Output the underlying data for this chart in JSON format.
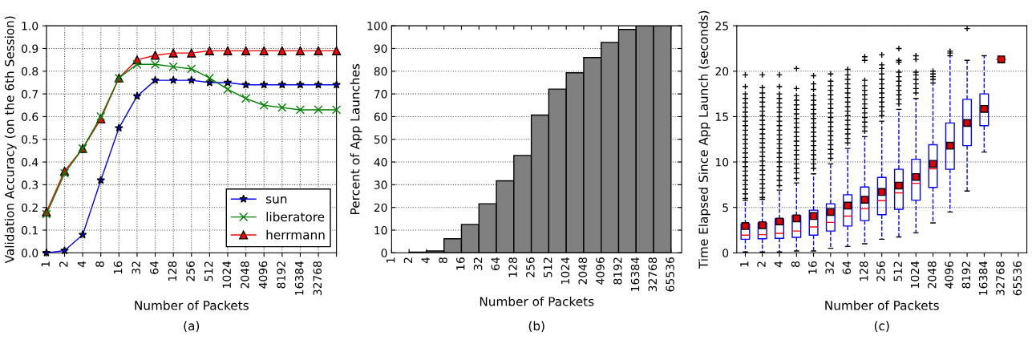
{
  "chart_data": [
    {
      "type": "line",
      "xlabel": "Number of Packets",
      "ylabel": "Validation Accuracy (on the 6th Session)",
      "categories": [
        "1",
        "2",
        "4",
        "8",
        "16",
        "32",
        "64",
        "128",
        "256",
        "512",
        "1024",
        "2048",
        "4096",
        "8192",
        "16384",
        "32768",
        null
      ],
      "series": [
        {
          "name": "sun",
          "color": "#0000ff",
          "marker": "star",
          "values": [
            0.0,
            0.01,
            0.08,
            0.32,
            0.55,
            0.69,
            0.76,
            0.76,
            0.76,
            0.75,
            0.75,
            0.74,
            0.74,
            0.74,
            0.74,
            0.74,
            0.74
          ]
        },
        {
          "name": "liberatore",
          "color": "#008000",
          "marker": "cross",
          "values": [
            0.17,
            0.35,
            0.46,
            0.6,
            0.77,
            0.83,
            0.83,
            0.82,
            0.81,
            0.77,
            0.72,
            0.68,
            0.65,
            0.64,
            0.63,
            0.63,
            0.63
          ]
        },
        {
          "name": "herrmann",
          "color": "#ff0000",
          "marker": "triangle",
          "values": [
            0.18,
            0.36,
            0.46,
            0.59,
            0.77,
            0.85,
            0.87,
            0.88,
            0.88,
            0.89,
            0.89,
            0.89,
            0.89,
            0.89,
            0.89,
            0.89,
            0.89
          ]
        }
      ],
      "ylim": [
        0.0,
        1.0
      ],
      "yticks": [
        {
          "value": 0,
          "label": "0.0"
        },
        0.1,
        0.2,
        0.3,
        0.4,
        0.5,
        0.6,
        0.7,
        0.8,
        0.9,
        {
          "value": 1,
          "label": "1.0"
        }
      ],
      "grid": true,
      "legend": "bottom right",
      "annotations": [
        "(a)"
      ]
    },
    {
      "type": "histogram",
      "xlabel": "Number of Packets",
      "ylabel": "Percent of App Launches",
      "color": "#808080",
      "log": "x",
      "bins": [
        1,
        2,
        4,
        8,
        16,
        32,
        64,
        128,
        256,
        512,
        1024,
        2048,
        4096,
        8192,
        16384,
        32768,
        65536
      ],
      "values": [
        0,
        0.3,
        0.8,
        6.2,
        12.5,
        21.6,
        31.7,
        42.9,
        60.7,
        72.1,
        79.3,
        86.0,
        92.7,
        98.4,
        100,
        100
      ],
      "xlim": [
        1,
        100000
      ],
      "xticks": [
        1,
        2,
        4,
        8,
        16,
        32,
        64,
        128,
        256,
        512,
        1024,
        2048,
        4096,
        8192,
        16384,
        32768,
        65536
      ],
      "ylim": [
        0,
        100
      ],
      "yticks": [
        0,
        10,
        20,
        30,
        40,
        50,
        60,
        70,
        80,
        90,
        100
      ],
      "grid": "y",
      "annotations": [
        "(b)"
      ]
    },
    {
      "type": "box",
      "xlabel": "Number of Packets",
      "ylabel": "Time Elapsed Since App Launch (seconds)",
      "color": "#0000ff",
      "categories": [
        "1",
        "2",
        "4",
        "8",
        "16",
        "32",
        "64",
        "128",
        "256",
        "512",
        "1024",
        "2048",
        "4096",
        "8192",
        "16384",
        "32768",
        "65536"
      ],
      "boxes": [
        {
          "low": 0.1,
          "q1": 1.5,
          "median": 1.95,
          "q3": 3.2,
          "high": 5.8,
          "mean": 2.95,
          "outliers": [
            6.0,
            6.5,
            7.0,
            7.5,
            8.0,
            8.5,
            9.0,
            9.5,
            10.0,
            10.5,
            11.0,
            11.5,
            12.0,
            12.5,
            13.0,
            13.5,
            14.0,
            14.5,
            15.0,
            15.5,
            16.0,
            16.5,
            17.0,
            17.5,
            18.3,
            19.6
          ]
        },
        {
          "low": 0.1,
          "q1": 1.55,
          "median": 2.0,
          "q3": 3.3,
          "high": 5.9,
          "mean": 3.05,
          "outliers": [
            6.1,
            6.6,
            7.1,
            7.6,
            8.1,
            8.6,
            9.1,
            9.6,
            10.1,
            10.6,
            11.1,
            11.6,
            12.1,
            12.6,
            13.1,
            13.6,
            14.1,
            14.6,
            15.1,
            15.6,
            16.1,
            16.6,
            17.1,
            17.6,
            18.2,
            19.6
          ]
        },
        {
          "low": 0.1,
          "q1": 1.6,
          "median": 2.15,
          "q3": 3.75,
          "high": 6.9,
          "mean": 3.45,
          "outliers": [
            7.4,
            8.0,
            8.5,
            9.0,
            9.5,
            10.0,
            10.5,
            11.0,
            11.5,
            12.0,
            12.5,
            13.0,
            13.5,
            14.0,
            14.5,
            15.0,
            15.5,
            16.0,
            16.5,
            17.0,
            17.5,
            18.3,
            19.6
          ]
        },
        {
          "low": 0.2,
          "q1": 1.7,
          "median": 2.4,
          "q3": 4.1,
          "high": 7.7,
          "mean": 3.8,
          "outliers": [
            8.2,
            8.8,
            9.3,
            9.8,
            10.3,
            10.8,
            11.3,
            11.8,
            12.3,
            12.8,
            13.3,
            13.8,
            14.3,
            14.8,
            15.3,
            15.8,
            16.3,
            16.8,
            17.3,
            18.1,
            20.3
          ]
        },
        {
          "low": 0.2,
          "q1": 1.95,
          "median": 2.85,
          "q3": 4.7,
          "high": 8.7,
          "mean": 4.05,
          "outliers": [
            9.3,
            9.8,
            10.3,
            10.8,
            11.3,
            11.8,
            12.3,
            12.8,
            13.3,
            13.8,
            14.3,
            14.8,
            15.3,
            15.8,
            16.3,
            16.8,
            17.3,
            18.0,
            18.6,
            19.5
          ]
        },
        {
          "low": 0.5,
          "q1": 2.4,
          "median": 3.35,
          "q3": 5.4,
          "high": 9.8,
          "mean": 4.5,
          "outliers": [
            10.4,
            10.9,
            11.4,
            11.9,
            12.4,
            12.9,
            13.4,
            13.9,
            14.4,
            14.9,
            15.4,
            15.9,
            16.4,
            16.9,
            17.4,
            17.9,
            18.4,
            18.9,
            19.7
          ]
        },
        {
          "low": 0.7,
          "q1": 2.95,
          "median": 4.05,
          "q3": 6.4,
          "high": 11.5,
          "mean": 5.2,
          "outliers": [
            12.1,
            12.6,
            13.1,
            13.6,
            14.1,
            14.6,
            15.1,
            15.6,
            16.1,
            16.6,
            17.1,
            17.6,
            18.1,
            18.6,
            19.1,
            19.6,
            20.2
          ]
        },
        {
          "low": 1.0,
          "q1": 3.55,
          "median": 4.85,
          "q3": 7.25,
          "high": 12.8,
          "mean": 5.85,
          "outliers": [
            13.4,
            13.9,
            14.4,
            14.9,
            15.4,
            15.9,
            16.4,
            16.9,
            17.4,
            17.9,
            18.4,
            19.0,
            21.2,
            21.6
          ]
        },
        {
          "low": 1.5,
          "q1": 4.2,
          "median": 5.75,
          "q3": 8.3,
          "high": 14.5,
          "mean": 6.7,
          "outliers": [
            15.1,
            15.6,
            16.1,
            16.6,
            17.1,
            17.6,
            18.1,
            18.6,
            19.1,
            19.7,
            20.3,
            20.7,
            21.8
          ]
        },
        {
          "low": 1.75,
          "q1": 4.8,
          "median": 6.6,
          "q3": 9.2,
          "high": 15.8,
          "mean": 7.4,
          "outliers": [
            16.4,
            16.9,
            17.4,
            17.9,
            18.4,
            18.9,
            19.4,
            19.9,
            21.0,
            21.2,
            22.5
          ]
        },
        {
          "low": 2.2,
          "q1": 5.8,
          "median": 7.65,
          "q3": 10.3,
          "high": 17.0,
          "mean": 8.35,
          "outliers": [
            17.6,
            18.1,
            18.6,
            19.1,
            19.6,
            19.9,
            21.3,
            21.7
          ]
        },
        {
          "low": 3.3,
          "q1": 7.2,
          "median": 9.25,
          "q3": 11.9,
          "high": 18.7,
          "mean": 9.8,
          "outliers": [
            19.1,
            19.4,
            19.7,
            20.0
          ]
        },
        {
          "low": 4.5,
          "q1": 9.2,
          "median": 11.7,
          "q3": 14.3,
          "high": 21.7,
          "mean": 11.8,
          "outliers": [
            22.0,
            22.2
          ]
        },
        {
          "low": 6.8,
          "q1": 11.8,
          "median": 14.4,
          "q3": 16.9,
          "high": 21.2,
          "mean": 14.3,
          "outliers": [
            24.7
          ]
        },
        {
          "low": 11.1,
          "q1": 14.0,
          "median": 15.7,
          "q3": 17.5,
          "high": 21.7,
          "mean": 15.85
        },
        {
          "low": 21.3,
          "q1": 21.3,
          "median": 21.3,
          "q3": 21.3,
          "high": 21.3,
          "mean": 21.3
        },
        null
      ],
      "ylim": [
        0,
        25
      ],
      "yticks": [
        0,
        5,
        10,
        15,
        20,
        25
      ],
      "grid": "y",
      "annotations": [
        "(c)"
      ]
    }
  ]
}
